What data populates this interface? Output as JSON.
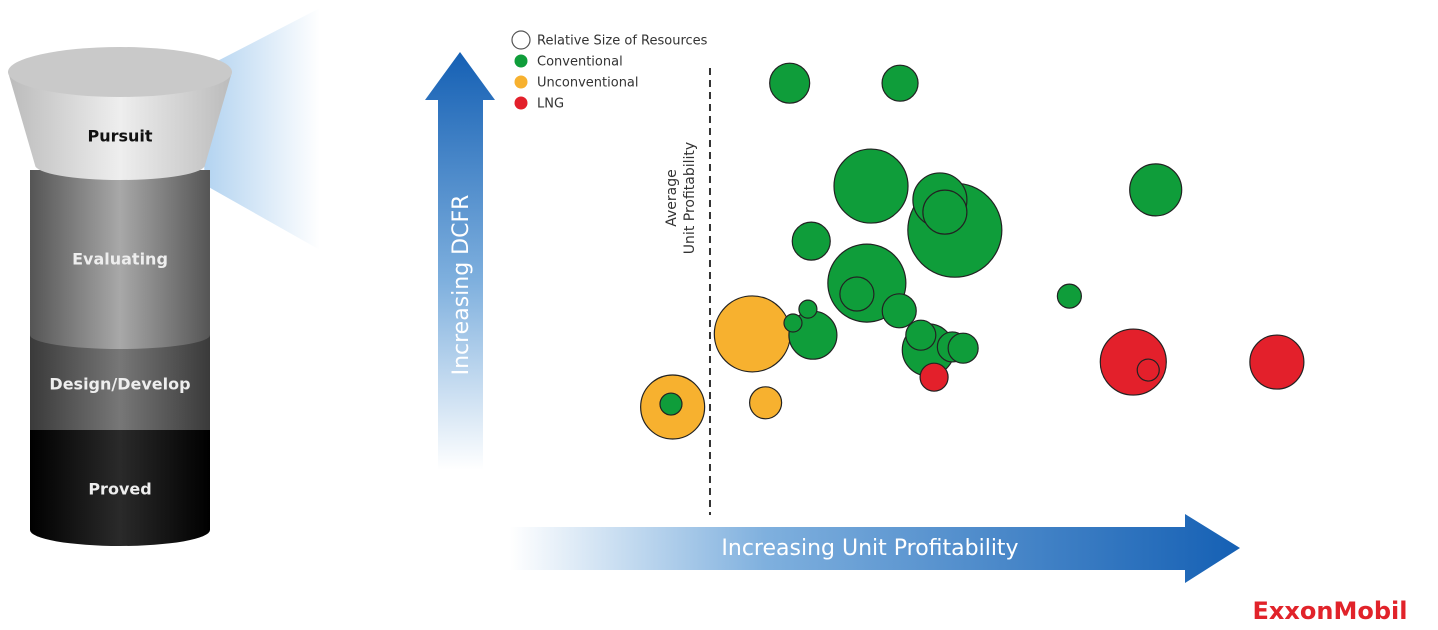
{
  "chart_data": {
    "type": "bubble",
    "x_label": "Increasing Unit Profitability",
    "y_label": "Increasing DCFR",
    "size_legend": "Relative Size of Resources",
    "xlim": [
      0,
      100
    ],
    "ylim": [
      0,
      100
    ],
    "annotation": {
      "lines": [
        "Average",
        "Unit Profitability"
      ],
      "x": 25.3
    },
    "series": [
      {
        "name": "Conventional",
        "color": "#0f9d3a",
        "x": [
          34.9,
          48.2,
          44.7,
          54.8,
          53.0,
          53.6,
          79.0,
          37.5,
          44.2,
          43.0,
          48.1,
          68.6,
          37.7,
          37.1,
          35.3,
          51.6,
          50.7,
          54.5,
          55.8,
          20.6
        ],
        "values": [
          92.1,
          92.1,
          67.6,
          57.1,
          64.3,
          61.4,
          66.7,
          54.5,
          44.5,
          41.9,
          37.9,
          41.4,
          32.1,
          38.3,
          35.0,
          28.6,
          32.1,
          29.3,
          29.0,
          15.7
        ],
        "sizes": [
          20,
          18,
          37,
          47,
          27,
          22,
          26,
          19,
          39,
          17,
          17,
          12,
          24,
          9,
          9,
          26,
          15,
          15,
          15,
          11
        ]
      },
      {
        "name": "Unconventional",
        "color": "#f7b12f",
        "x": [
          30.4,
          20.8,
          32.0
        ],
        "values": [
          32.4,
          15.0,
          16.0
        ],
        "sizes": [
          38,
          32,
          16
        ]
      },
      {
        "name": "LNG",
        "color": "#e3202b",
        "x": [
          76.3,
          78.1,
          93.6,
          52.3
        ],
        "values": [
          25.7,
          23.8,
          25.7,
          22.1
        ],
        "sizes": [
          33,
          11,
          27,
          14
        ]
      }
    ]
  },
  "funnel": {
    "stages": [
      "Pursuit",
      "Evaluating",
      "Design/Develop",
      "Proved"
    ]
  },
  "logo": "ExxonMobil"
}
